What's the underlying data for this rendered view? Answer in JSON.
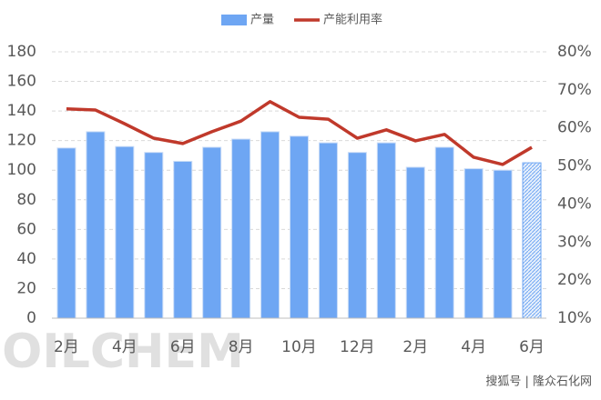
{
  "chart_data": {
    "type": "bar-line",
    "categories": [
      "2月",
      null,
      "4月",
      null,
      "6月",
      null,
      "8月",
      null,
      "10月",
      null,
      "12月",
      null,
      "2月",
      null,
      "4月",
      null,
      "6月"
    ],
    "series": [
      {
        "name": "产量",
        "color": "#6ea6f3",
        "values": [
          115,
          126,
          116,
          112,
          106,
          115.5,
          121,
          126,
          123,
          118.5,
          112,
          118.5,
          102,
          115.5,
          101,
          100,
          105
        ],
        "styles": [
          "solid",
          "solid",
          "solid",
          "solid",
          "solid",
          "solid",
          "solid",
          "solid",
          "solid",
          "solid",
          "solid",
          "solid",
          "solid",
          "solid",
          "solid",
          "solid",
          "hatched"
        ]
      },
      {
        "name": "产能利用率",
        "color": "#c0392b",
        "axis": "y2",
        "values": [
          65,
          64.7,
          61.1,
          57.3,
          55.9,
          59,
          61.8,
          66.9,
          62.8,
          62.3,
          57.3,
          59.5,
          56.6,
          58.3,
          52.3,
          50.4,
          54.9
        ]
      }
    ],
    "ylim": [
      0,
      180
    ],
    "yticks": [
      0,
      20,
      40,
      60,
      80,
      100,
      120,
      140,
      160,
      180
    ],
    "y2lim": [
      10,
      80
    ],
    "y2ticks": [
      {
        "value": 10,
        "label": "10%"
      },
      {
        "value": 20,
        "label": "20%"
      },
      {
        "value": 30,
        "label": "30%"
      },
      {
        "value": 40,
        "label": "40%"
      },
      {
        "value": 50,
        "label": "50%"
      },
      {
        "value": 60,
        "label": "60%"
      },
      {
        "value": 70,
        "label": "70%"
      },
      {
        "value": 80,
        "label": "80%"
      }
    ],
    "grid": true,
    "legend": "top",
    "watermark": "OILCHEM",
    "source": "搜狐号 | 隆众石化网"
  }
}
